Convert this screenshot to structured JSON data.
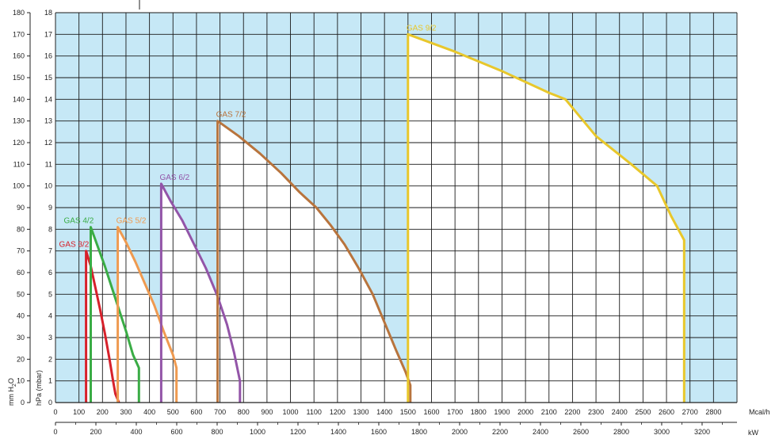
{
  "chart_data": {
    "type": "line",
    "x_unit_top": "Mcal/h",
    "x_unit_bottom": "kW",
    "y_unit_left": "mm H2O",
    "y_unit_inner": "hPa (mbar)",
    "y_label_left_text": "mm H",
    "y_label_left_sub": "2",
    "y_label_left_end": "O",
    "y_label_inner_text": "hPa (mbar)",
    "x_top_range": [
      0,
      2900
    ],
    "x_top_ticks": [
      0,
      100,
      200,
      300,
      400,
      500,
      600,
      700,
      800,
      900,
      1000,
      1100,
      1200,
      1300,
      1400,
      1500,
      1600,
      1700,
      1800,
      1900,
      2000,
      2100,
      2200,
      2300,
      2400,
      2500,
      2600,
      2700,
      2800
    ],
    "x_bottom_ticks": [
      0,
      200,
      400,
      600,
      800,
      1000,
      1200,
      1400,
      1600,
      1800,
      2000,
      2200,
      2400,
      2600,
      2800,
      3000,
      3200
    ],
    "y_mm_ticks": [
      0,
      10,
      20,
      30,
      40,
      50,
      60,
      70,
      80,
      90,
      100,
      110,
      120,
      130,
      140,
      150,
      160,
      170,
      180
    ],
    "y_hpa_ticks": [
      0,
      1,
      2,
      3,
      4,
      5,
      6,
      7,
      8,
      9,
      10,
      11,
      12,
      13,
      14,
      15,
      16,
      17,
      18
    ],
    "ylim_hpa": [
      0,
      18
    ],
    "background_color": "#c6e8f6",
    "working_area_color": "#ffffff",
    "grid": true,
    "series": [
      {
        "name": "GAS 3/2",
        "color": "#d7212b",
        "points": [
          [
            130,
            0
          ],
          [
            130,
            7.0
          ],
          [
            150,
            6.3
          ],
          [
            170,
            5.3
          ],
          [
            190,
            4.3
          ],
          [
            210,
            3.2
          ],
          [
            230,
            2.0
          ],
          [
            245,
            1.0
          ],
          [
            255,
            0.4
          ],
          [
            270,
            0
          ],
          [
            130,
            0
          ]
        ]
      },
      {
        "name": "GAS 4/2",
        "color": "#3aac45",
        "points": [
          [
            150,
            0
          ],
          [
            150,
            8.1
          ],
          [
            180,
            7.2
          ],
          [
            210,
            6.3
          ],
          [
            240,
            5.3
          ],
          [
            270,
            4.3
          ],
          [
            300,
            3.3
          ],
          [
            330,
            2.2
          ],
          [
            355,
            1.6
          ],
          [
            355,
            0
          ],
          [
            150,
            0
          ]
        ]
      },
      {
        "name": "GAS 5/2",
        "color": "#ef9a50",
        "points": [
          [
            265,
            0
          ],
          [
            265,
            8.1
          ],
          [
            300,
            7.4
          ],
          [
            340,
            6.5
          ],
          [
            380,
            5.5
          ],
          [
            420,
            4.5
          ],
          [
            460,
            3.3
          ],
          [
            500,
            2.2
          ],
          [
            515,
            1.6
          ],
          [
            515,
            0
          ],
          [
            265,
            0
          ]
        ]
      },
      {
        "name": "GAS 6/2",
        "color": "#9355a8",
        "points": [
          [
            450,
            0
          ],
          [
            450,
            10.1
          ],
          [
            490,
            9.3
          ],
          [
            540,
            8.4
          ],
          [
            590,
            7.3
          ],
          [
            640,
            6.2
          ],
          [
            690,
            4.9
          ],
          [
            730,
            3.6
          ],
          [
            760,
            2.3
          ],
          [
            785,
            1.0
          ],
          [
            785,
            0
          ],
          [
            450,
            0
          ]
        ]
      },
      {
        "name": "GAS 7/2",
        "color": "#b8743d",
        "points": [
          [
            690,
            0
          ],
          [
            690,
            13.0
          ],
          [
            780,
            12.3
          ],
          [
            870,
            11.5
          ],
          [
            960,
            10.6
          ],
          [
            1040,
            9.7
          ],
          [
            1110,
            9.0
          ],
          [
            1170,
            8.2
          ],
          [
            1230,
            7.3
          ],
          [
            1290,
            6.2
          ],
          [
            1350,
            5.0
          ],
          [
            1400,
            3.7
          ],
          [
            1450,
            2.4
          ],
          [
            1490,
            1.4
          ],
          [
            1510,
            0.8
          ],
          [
            1510,
            0
          ],
          [
            690,
            0
          ]
        ]
      },
      {
        "name": "GAS 9/2",
        "color": "#e8c72b",
        "points": [
          [
            1500,
            0
          ],
          [
            1500,
            17.0
          ],
          [
            1700,
            16.2
          ],
          [
            1900,
            15.3
          ],
          [
            2100,
            14.3
          ],
          [
            2170,
            14.0
          ],
          [
            2300,
            12.3
          ],
          [
            2450,
            11.0
          ],
          [
            2560,
            10.0
          ],
          [
            2620,
            8.6
          ],
          [
            2675,
            7.5
          ],
          [
            2675,
            0
          ],
          [
            1500,
            0
          ]
        ]
      }
    ]
  }
}
